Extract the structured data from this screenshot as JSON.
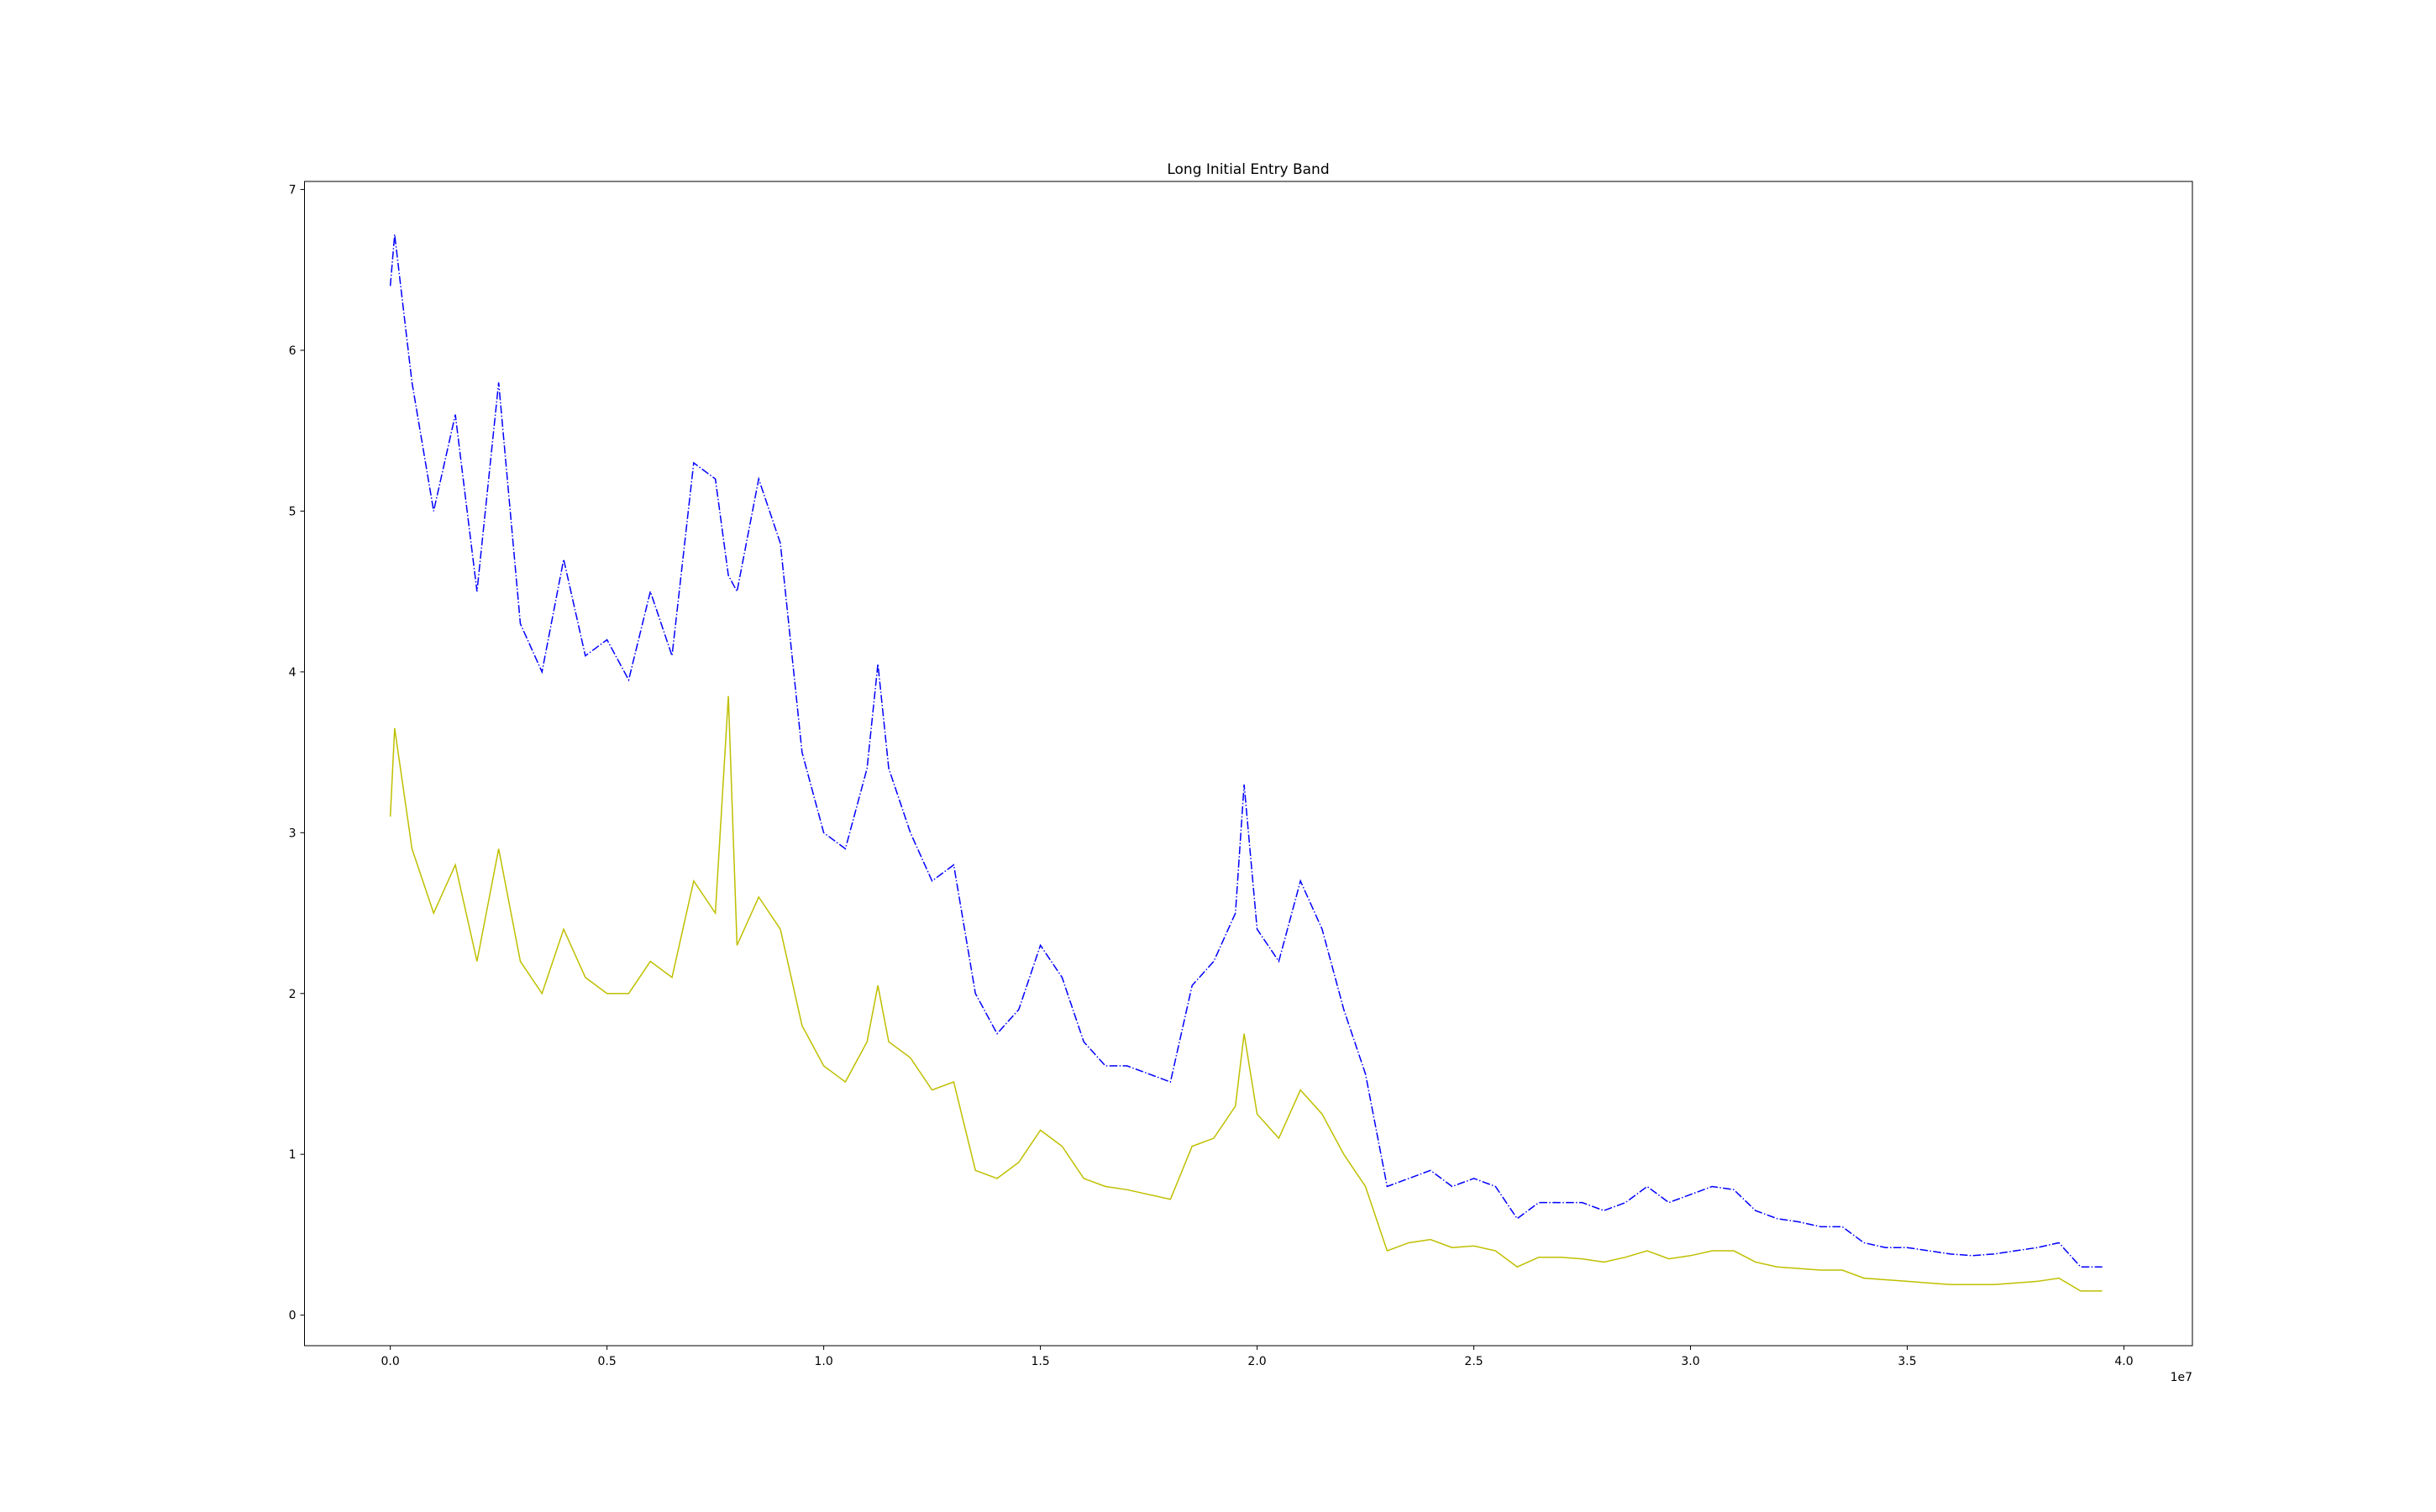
{
  "chart_data": {
    "type": "line",
    "title": "Long Initial Entry Band",
    "x": [
      0,
      100000,
      500000,
      1000000,
      1500000,
      2000000,
      2500000,
      3000000,
      3500000,
      4000000,
      4500000,
      5000000,
      5500000,
      6000000,
      6500000,
      7000000,
      7500000,
      7800000,
      8000000,
      8500000,
      9000000,
      9500000,
      10000000,
      10500000,
      11000000,
      11250000,
      11500000,
      12000000,
      12500000,
      13000000,
      13500000,
      14000000,
      14500000,
      15000000,
      15500000,
      16000000,
      16500000,
      17000000,
      17500000,
      18000000,
      18500000,
      19000000,
      19500000,
      19700000,
      20000000,
      20500000,
      21000000,
      21500000,
      22000000,
      22500000,
      23000000,
      23500000,
      24000000,
      24500000,
      25000000,
      25500000,
      26000000,
      26500000,
      27000000,
      27500000,
      28000000,
      28500000,
      29000000,
      29500000,
      30000000,
      30500000,
      31000000,
      31500000,
      32000000,
      32500000,
      33000000,
      33500000,
      34000000,
      34500000,
      35000000,
      35500000,
      36000000,
      36500000,
      37000000,
      37500000,
      38000000,
      38500000,
      39000000,
      39500000
    ],
    "series": [
      {
        "color": "#0000ff",
        "linestyle": "dashdot",
        "values": [
          6.4,
          6.72,
          5.8,
          5.0,
          5.6,
          4.5,
          5.8,
          4.3,
          4.0,
          4.7,
          4.1,
          4.2,
          3.95,
          4.5,
          4.1,
          5.3,
          5.2,
          4.6,
          4.5,
          5.2,
          4.8,
          3.5,
          3.0,
          2.9,
          3.4,
          4.05,
          3.4,
          3.0,
          2.7,
          2.8,
          2.0,
          1.75,
          1.9,
          2.3,
          2.1,
          1.7,
          1.55,
          1.55,
          1.5,
          1.45,
          2.05,
          2.2,
          2.5,
          3.3,
          2.4,
          2.2,
          2.7,
          2.4,
          1.9,
          1.5,
          0.8,
          0.85,
          0.9,
          0.8,
          0.85,
          0.8,
          0.6,
          0.7,
          0.7,
          0.7,
          0.65,
          0.7,
          0.8,
          0.7,
          0.75,
          0.8,
          0.78,
          0.65,
          0.6,
          0.58,
          0.55,
          0.55,
          0.45,
          0.42,
          0.42,
          0.4,
          0.38,
          0.37,
          0.38,
          0.4,
          0.42,
          0.45,
          0.3,
          0.3
        ]
      },
      {
        "color": "#bfbf00",
        "linestyle": "solid",
        "values": [
          3.1,
          3.65,
          2.9,
          2.5,
          2.8,
          2.2,
          2.9,
          2.2,
          2.0,
          2.4,
          2.1,
          2.0,
          2.0,
          2.2,
          2.1,
          2.7,
          2.5,
          3.85,
          2.3,
          2.6,
          2.4,
          1.8,
          1.55,
          1.45,
          1.7,
          2.05,
          1.7,
          1.6,
          1.4,
          1.45,
          0.9,
          0.85,
          0.95,
          1.15,
          1.05,
          0.85,
          0.8,
          0.78,
          0.75,
          0.72,
          1.05,
          1.1,
          1.3,
          1.75,
          1.25,
          1.1,
          1.4,
          1.25,
          1.0,
          0.8,
          0.4,
          0.45,
          0.47,
          0.42,
          0.43,
          0.4,
          0.3,
          0.36,
          0.36,
          0.35,
          0.33,
          0.36,
          0.4,
          0.35,
          0.37,
          0.4,
          0.4,
          0.33,
          0.3,
          0.29,
          0.28,
          0.28,
          0.23,
          0.22,
          0.21,
          0.2,
          0.19,
          0.19,
          0.19,
          0.2,
          0.21,
          0.23,
          0.15,
          0.15
        ]
      }
    ],
    "xlim": [
      -1980000,
      41580000
    ],
    "xticks": [
      {
        "value": 0,
        "label": "0.0"
      },
      {
        "value": 5000000,
        "label": "0.5"
      },
      {
        "value": 10000000,
        "label": "1.0"
      },
      {
        "value": 15000000,
        "label": "1.5"
      },
      {
        "value": 20000000,
        "label": "2.0"
      },
      {
        "value": 25000000,
        "label": "2.5"
      },
      {
        "value": 30000000,
        "label": "3.0"
      },
      {
        "value": 35000000,
        "label": "3.5"
      },
      {
        "value": 40000000,
        "label": "4.0"
      }
    ],
    "x_offset_label": "1e7",
    "ylim": [
      -0.19,
      7.05
    ],
    "yticks": [
      0,
      1,
      2,
      3,
      4,
      5,
      6,
      7
    ],
    "grid": false
  }
}
